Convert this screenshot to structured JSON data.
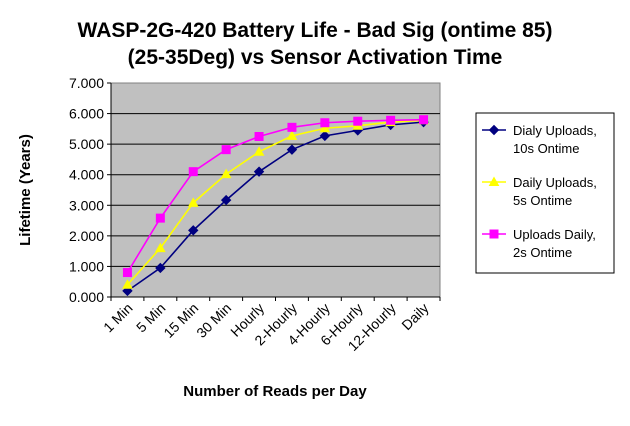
{
  "chart_data": {
    "type": "line",
    "title_lines": [
      "WASP-2G-420 Battery Life - Bad Sig (ontime 85)",
      "(25-35Deg) vs Sensor Activation Time"
    ],
    "xlabel": "Number of Reads per Day",
    "ylabel": "Lifetime (Years)",
    "categories": [
      "1 Min",
      "5 Min",
      "15 Min",
      "30 Min",
      "Hourly",
      "2-Hourly",
      "4-Hourly",
      "6-Hourly",
      "12-Hourly",
      "Daily"
    ],
    "ylim": [
      0,
      7
    ],
    "yticks": [
      "0.000",
      "1.000",
      "2.000",
      "3.000",
      "4.000",
      "5.000",
      "6.000",
      "7.000"
    ],
    "grid": true,
    "legend_position": "right",
    "plot_background": "#c0c0c0",
    "series": [
      {
        "legend_lines": [
          "Dialy Uploads,",
          "10s Ontime"
        ],
        "color": "#000080",
        "marker": "diamond",
        "values": [
          0.2,
          0.95,
          2.18,
          3.17,
          4.1,
          4.82,
          5.27,
          5.45,
          5.63,
          5.72
        ]
      },
      {
        "legend_lines": [
          "Daily Uploads,",
          "5s Ontime"
        ],
        "color": "#ffff00",
        "marker": "triangle",
        "values": [
          0.4,
          1.6,
          3.08,
          4.02,
          4.75,
          5.27,
          5.52,
          5.6,
          5.72,
          5.78
        ]
      },
      {
        "legend_lines": [
          "Uploads Daily,",
          "2s Ontime"
        ],
        "color": "#ff00ff",
        "marker": "square",
        "values": [
          0.8,
          2.58,
          4.1,
          4.82,
          5.25,
          5.55,
          5.7,
          5.75,
          5.78,
          5.8
        ]
      }
    ]
  }
}
